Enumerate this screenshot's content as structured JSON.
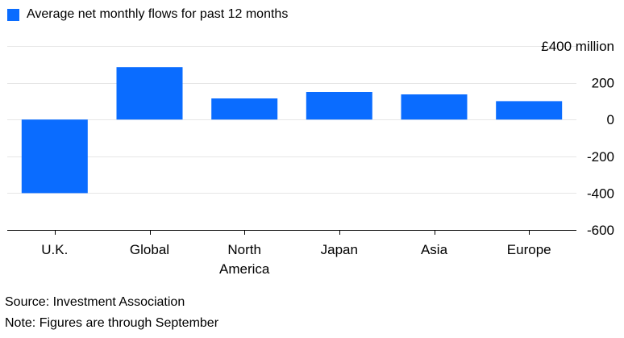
{
  "chart_data": {
    "type": "bar",
    "legend_position": "top-left",
    "series": [
      {
        "name": "Average net monthly flows for past 12 months",
        "color": "#0a6cff",
        "values": [
          -400,
          285,
          115,
          150,
          137,
          100
        ]
      }
    ],
    "categories": [
      [
        "U.K."
      ],
      [
        "Global"
      ],
      [
        "North",
        "America"
      ],
      [
        "Japan"
      ],
      [
        "Asia"
      ],
      [
        "Europe"
      ]
    ],
    "y_unit_label": "£400 million",
    "y_ticks": [
      "200",
      "0",
      "-200",
      "-400",
      "-600"
    ],
    "ylim": [
      -600,
      400
    ],
    "grid": true
  },
  "footer": {
    "source": "Source: Investment Association",
    "note": "Note: Figures are through September"
  },
  "colors": {
    "bar": "#0a6cff",
    "grid": "#e6e6e6",
    "axis": "#000000"
  }
}
